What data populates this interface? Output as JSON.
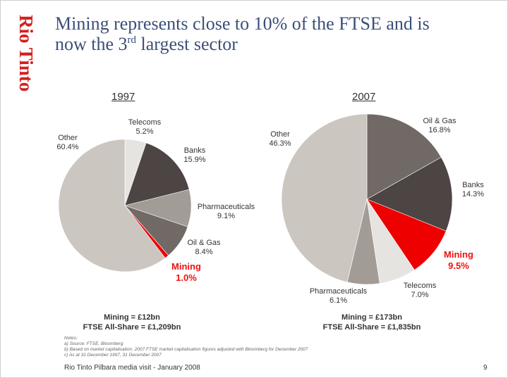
{
  "logo_text": "Rio Tinto",
  "title": {
    "line1": "Mining represents close to 10% of the FTSE and is",
    "line2_prefix": "now the 3",
    "line2_sup": "rd",
    "line2_suffix": " largest sector"
  },
  "chart_data": [
    {
      "type": "pie",
      "title": "1997",
      "slices": [
        {
          "label": "Telecoms",
          "value": 5.2,
          "display": "5.2%",
          "color": "#e6e4e0"
        },
        {
          "label": "Banks",
          "value": 15.9,
          "display": "15.9%",
          "color": "#4c4544"
        },
        {
          "label": "Pharmaceuticals",
          "value": 9.1,
          "display": "9.1%",
          "color": "#a39b95"
        },
        {
          "label": "Oil & Gas",
          "value": 8.4,
          "display": "8.4%",
          "color": "#716966"
        },
        {
          "label": "Mining",
          "value": 1.0,
          "display": "1.0%",
          "color": "#ee0000"
        },
        {
          "label": "Other",
          "value": 60.4,
          "display": "60.4%",
          "color": "#cbc6c0"
        }
      ],
      "summary": [
        "Mining = £12bn",
        "FTSE All-Share = £1,209bn"
      ]
    },
    {
      "type": "pie",
      "title": "2007",
      "slices": [
        {
          "label": "Oil & Gas",
          "value": 16.8,
          "display": "16.8%",
          "color": "#716966"
        },
        {
          "label": "Banks",
          "value": 14.3,
          "display": "14.3%",
          "color": "#4c4544"
        },
        {
          "label": "Mining",
          "value": 9.5,
          "display": "9.5%",
          "color": "#ee0000"
        },
        {
          "label": "Telecoms",
          "value": 7.0,
          "display": "7.0%",
          "color": "#e6e4e0"
        },
        {
          "label": "Pharmaceuticals",
          "value": 6.1,
          "display": "6.1%",
          "color": "#a39b95"
        },
        {
          "label": "Other",
          "value": 46.3,
          "display": "46.3%",
          "color": "#cbc6c0"
        }
      ],
      "summary": [
        "Mining = £173bn",
        "FTSE All-Share = £1,835bn"
      ]
    }
  ],
  "notes": {
    "heading": "Notes:",
    "items": [
      "a)  Source: FTSE, Bloomberg",
      "b)  Based on market capitalisation. 2007 FTSE market capitalisation figures adjusted with Bloomberg for December 2007",
      "c)  As at 31 December 1997, 31 December 2007"
    ]
  },
  "footer": "Rio Tinto Pilbara media visit - January 2008",
  "page_number": "9"
}
